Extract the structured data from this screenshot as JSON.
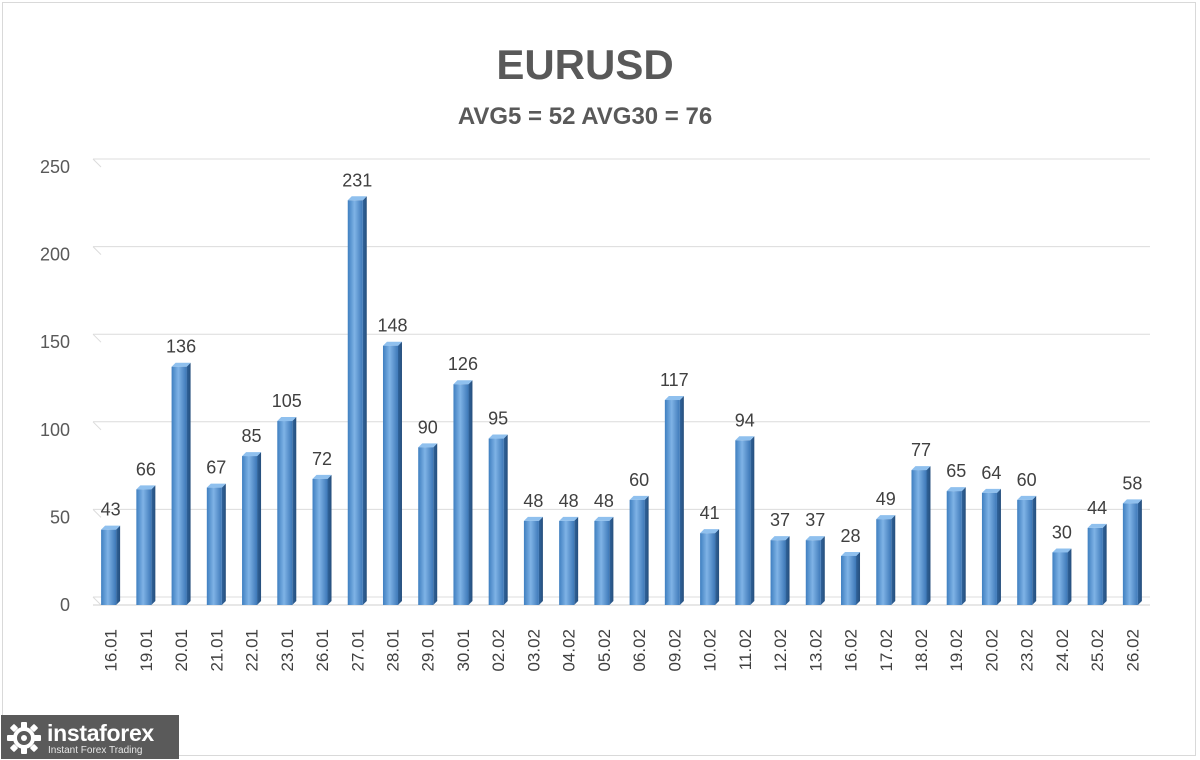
{
  "chart_data": {
    "type": "bar",
    "title": "EURUSD",
    "subtitle": "AVG5 = 52 AVG30 = 76",
    "categories": [
      "16.01",
      "19.01",
      "20.01",
      "21.01",
      "22.01",
      "23.01",
      "26.01",
      "27.01",
      "28.01",
      "29.01",
      "30.01",
      "02.02",
      "03.02",
      "04.02",
      "05.02",
      "06.02",
      "09.02",
      "10.02",
      "11.02",
      "12.02",
      "13.02",
      "16.02",
      "17.02",
      "18.02",
      "19.02",
      "20.02",
      "23.02",
      "24.02",
      "25.02",
      "26.02"
    ],
    "values": [
      43,
      66,
      136,
      67,
      85,
      105,
      72,
      231,
      148,
      90,
      126,
      95,
      48,
      48,
      48,
      60,
      117,
      41,
      94,
      37,
      37,
      28,
      49,
      77,
      65,
      64,
      60,
      30,
      44,
      58
    ],
    "ylim": [
      0,
      250
    ],
    "yticks": [
      0,
      50,
      100,
      150,
      200,
      250
    ],
    "grid": true,
    "data_labels": true,
    "bar_color": "#5b9bd5"
  },
  "branding": {
    "name": "instaforex",
    "tagline": "Instant Forex Trading"
  }
}
